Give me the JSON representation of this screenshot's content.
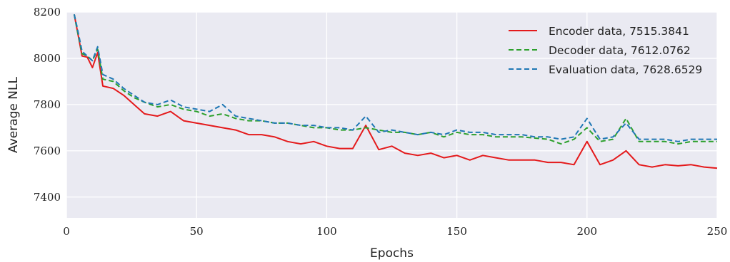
{
  "chart_data": {
    "type": "line",
    "title": "",
    "xlabel": "Epochs",
    "ylabel": "Average NLL",
    "xlim": [
      0,
      250
    ],
    "ylim": [
      7310,
      8200
    ],
    "xticks": [
      0,
      50,
      100,
      150,
      200,
      250
    ],
    "yticks": [
      7400,
      7600,
      7800,
      8000,
      8200
    ],
    "xtick_labels": [
      "0",
      "50",
      "100",
      "150",
      "200",
      "250"
    ],
    "ytick_labels": [
      "7400",
      "7600",
      "7800",
      "8000",
      "8200"
    ],
    "grid": true,
    "legend_position": "top-right",
    "series": [
      {
        "name": "Encoder data, 7515.3841",
        "color": "#e41a1c",
        "style": "solid",
        "x": [
          3,
          4,
          6,
          8,
          10,
          12,
          14,
          18,
          22,
          26,
          30,
          35,
          40,
          45,
          50,
          55,
          60,
          65,
          70,
          75,
          80,
          85,
          90,
          95,
          100,
          105,
          110,
          115,
          120,
          125,
          130,
          135,
          140,
          145,
          150,
          155,
          160,
          165,
          170,
          175,
          180,
          185,
          190,
          195,
          200,
          205,
          210,
          215,
          220,
          225,
          230,
          235,
          240,
          245,
          250
        ],
        "y": [
          8190,
          8130,
          8010,
          8005,
          7960,
          8025,
          7880,
          7870,
          7840,
          7800,
          7760,
          7750,
          7770,
          7730,
          7720,
          7710,
          7700,
          7690,
          7670,
          7670,
          7660,
          7640,
          7630,
          7640,
          7620,
          7610,
          7610,
          7710,
          7605,
          7620,
          7590,
          7580,
          7590,
          7570,
          7580,
          7560,
          7580,
          7570,
          7560,
          7560,
          7560,
          7550,
          7550,
          7540,
          7640,
          7540,
          7560,
          7600,
          7540,
          7530,
          7540,
          7535,
          7540,
          7530,
          7525
        ]
      },
      {
        "name": "Decoder data, 7612.0762",
        "color": "#2ca02c",
        "style": "dashed",
        "x": [
          3,
          4,
          6,
          8,
          10,
          12,
          14,
          18,
          22,
          26,
          30,
          35,
          40,
          45,
          50,
          55,
          60,
          65,
          70,
          75,
          80,
          85,
          90,
          95,
          100,
          105,
          110,
          115,
          120,
          125,
          130,
          135,
          140,
          145,
          150,
          155,
          160,
          165,
          170,
          175,
          180,
          185,
          190,
          195,
          200,
          205,
          210,
          215,
          220,
          225,
          230,
          235,
          240,
          245,
          250
        ],
        "y": [
          8190,
          8130,
          8020,
          8010,
          7990,
          8040,
          7910,
          7900,
          7860,
          7830,
          7810,
          7790,
          7800,
          7780,
          7770,
          7750,
          7760,
          7740,
          7730,
          7730,
          7720,
          7720,
          7710,
          7700,
          7700,
          7690,
          7690,
          7700,
          7690,
          7680,
          7680,
          7670,
          7680,
          7660,
          7680,
          7670,
          7670,
          7660,
          7660,
          7660,
          7655,
          7650,
          7630,
          7650,
          7700,
          7640,
          7650,
          7740,
          7640,
          7640,
          7640,
          7630,
          7640,
          7640,
          7640
        ]
      },
      {
        "name": "Evaluation data, 7628.6529",
        "color": "#1f77b4",
        "style": "dashed",
        "x": [
          3,
          4,
          6,
          8,
          10,
          12,
          14,
          18,
          22,
          26,
          30,
          35,
          40,
          45,
          50,
          55,
          60,
          65,
          70,
          75,
          80,
          85,
          90,
          95,
          100,
          105,
          110,
          115,
          120,
          125,
          130,
          135,
          140,
          145,
          150,
          155,
          160,
          165,
          170,
          175,
          180,
          185,
          190,
          195,
          200,
          205,
          210,
          215,
          220,
          225,
          230,
          235,
          240,
          245,
          250
        ],
        "y": [
          8190,
          8140,
          8030,
          8010,
          7990,
          8050,
          7930,
          7910,
          7870,
          7840,
          7810,
          7800,
          7820,
          7790,
          7780,
          7770,
          7800,
          7750,
          7740,
          7730,
          7720,
          7720,
          7710,
          7710,
          7700,
          7700,
          7690,
          7750,
          7680,
          7690,
          7680,
          7670,
          7680,
          7670,
          7690,
          7680,
          7680,
          7670,
          7670,
          7670,
          7660,
          7660,
          7650,
          7660,
          7740,
          7650,
          7660,
          7720,
          7650,
          7650,
          7650,
          7640,
          7650,
          7650,
          7650
        ]
      }
    ]
  }
}
